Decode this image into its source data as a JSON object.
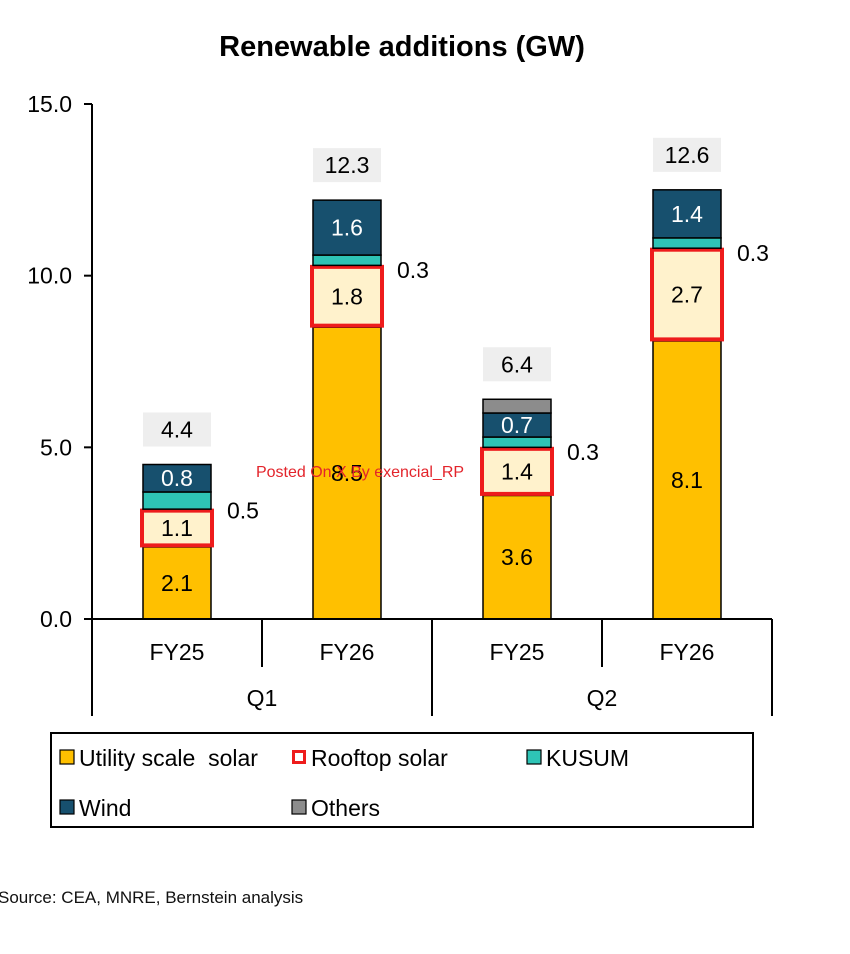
{
  "chart_data": {
    "type": "bar",
    "stacked": true,
    "title": "Renewable additions (GW)",
    "ylim": [
      0,
      15
    ],
    "yticks": [
      "0.0",
      "5.0",
      "10.0",
      "15.0"
    ],
    "categories": [
      "FY25",
      "FY26",
      "FY25",
      "FY26"
    ],
    "groups": [
      {
        "label": "Q1",
        "span": [
          0,
          1
        ]
      },
      {
        "label": "Q2",
        "span": [
          2,
          3
        ]
      }
    ],
    "series": [
      {
        "name": "Utility scale  solar",
        "color": "#FFC000",
        "values": [
          2.1,
          8.5,
          3.6,
          8.1
        ],
        "labels": [
          "2.1",
          "8.5",
          "3.6",
          "8.1"
        ]
      },
      {
        "name": "Rooftop solar",
        "color": "#FFF2CC",
        "outline": "#EE1C1C",
        "values": [
          1.1,
          1.8,
          1.4,
          2.7
        ],
        "labels": [
          "1.1",
          "1.8",
          "1.4",
          "2.7"
        ]
      },
      {
        "name": "KUSUM",
        "color": "#2EC4B6",
        "values": [
          0.5,
          0.3,
          0.3,
          0.3
        ],
        "labels": [
          "0.5",
          "0.3",
          "0.3",
          "0.3"
        ]
      },
      {
        "name": "Wind",
        "color": "#17506E",
        "values": [
          0.8,
          1.6,
          0.7,
          1.4
        ],
        "labels": [
          "0.8",
          "1.6",
          "0.7",
          "1.4"
        ]
      },
      {
        "name": "Others",
        "color": "#8C8C8C",
        "values": [
          0,
          0,
          0.4,
          0
        ],
        "labels": [
          "",
          "",
          "",
          ""
        ]
      }
    ],
    "totals": [
      "4.4",
      "12.3",
      "6.4",
      "12.6"
    ],
    "legend_position": "bottom"
  },
  "watermark": "Posted On X By exencial_RP",
  "source": "Source: CEA, MNRE, Bernstein analysis"
}
